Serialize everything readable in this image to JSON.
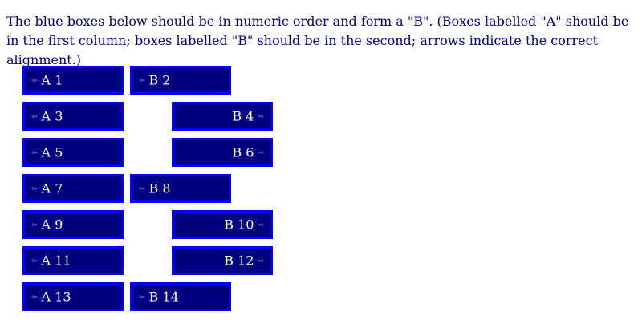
{
  "instructions": "The blue boxes below should be in numeric order and form a \"B\". (Boxes labelled \"A\" should be in the first column; boxes labelled \"B\" should be in the second; arrows indicate the correct alignment.)",
  "arrows": {
    "left": "⇦",
    "right": "⇨"
  },
  "colors": {
    "text": "#000080",
    "box_fill": "#000080",
    "box_border": "#0000ff",
    "box_text": "#ffffff"
  },
  "boxes": [
    {
      "label": "A 1",
      "column": "A",
      "arrow": "left"
    },
    {
      "label": "B 2",
      "column": "B",
      "arrow": "left"
    },
    {
      "label": "A 3",
      "column": "A",
      "arrow": "left"
    },
    {
      "label": "B 4",
      "column": "B",
      "arrow": "right"
    },
    {
      "label": "A 5",
      "column": "A",
      "arrow": "left"
    },
    {
      "label": "B 6",
      "column": "B",
      "arrow": "right"
    },
    {
      "label": "A 7",
      "column": "A",
      "arrow": "left"
    },
    {
      "label": "B 8",
      "column": "B",
      "arrow": "left"
    },
    {
      "label": "A 9",
      "column": "A",
      "arrow": "left"
    },
    {
      "label": "B 10",
      "column": "B",
      "arrow": "right"
    },
    {
      "label": "A 11",
      "column": "A",
      "arrow": "left"
    },
    {
      "label": "B 12",
      "column": "B",
      "arrow": "right"
    },
    {
      "label": "A 13",
      "column": "A",
      "arrow": "left"
    },
    {
      "label": "B 14",
      "column": "B",
      "arrow": "left"
    }
  ]
}
